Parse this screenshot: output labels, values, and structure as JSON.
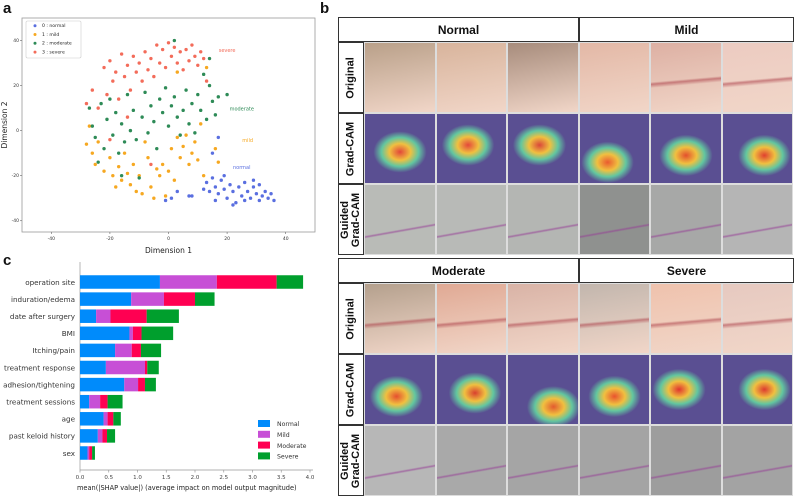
{
  "panel_letters": {
    "a": "a",
    "b": "b",
    "c": "c"
  },
  "panel_b": {
    "groups": [
      "Normal",
      "Mild",
      "Moderate",
      "Severe"
    ],
    "row_labels": {
      "original": "Original",
      "gradcam": "Grad-CAM",
      "guided_line1": "Guided",
      "guided_line2": "Grad-CAM"
    }
  },
  "chart_data": [
    {
      "type": "scatter",
      "title": "",
      "xlabel": "Dimension 1",
      "ylabel": "Dimension 2",
      "xlim": [
        -50,
        50
      ],
      "ylim": [
        -45,
        50
      ],
      "xticks": [
        -40,
        -20,
        0,
        20,
        40
      ],
      "yticks": [
        -40,
        -20,
        0,
        20,
        40
      ],
      "legend_position": "top-left",
      "series": [
        {
          "name": "0 : normal",
          "color": "#5a6fe0",
          "annotation": {
            "text": "normal",
            "x": 25,
            "y": -17
          },
          "points": [
            [
              13,
              -23
            ],
            [
              15,
              -21
            ],
            [
              16,
              -25
            ],
            [
              18,
              -22
            ],
            [
              17,
              -28
            ],
            [
              19,
              -26
            ],
            [
              20,
              -30
            ],
            [
              21,
              -24
            ],
            [
              22,
              -27
            ],
            [
              23,
              -32
            ],
            [
              24,
              -25
            ],
            [
              25,
              -29
            ],
            [
              26,
              -23
            ],
            [
              27,
              -27
            ],
            [
              28,
              -30
            ],
            [
              29,
              -25
            ],
            [
              30,
              -28
            ],
            [
              31,
              -24
            ],
            [
              32,
              -29
            ],
            [
              33,
              -27
            ],
            [
              34,
              -30
            ],
            [
              35,
              -28
            ],
            [
              36,
              -31
            ],
            [
              14,
              -27
            ],
            [
              16,
              -31
            ],
            [
              19,
              -20
            ],
            [
              22,
              -33
            ],
            [
              26,
              -31
            ],
            [
              29,
              -22
            ],
            [
              31,
              -31
            ],
            [
              12,
              -26
            ],
            [
              1,
              -30
            ],
            [
              3,
              -27
            ],
            [
              -1,
              -31
            ],
            [
              7,
              -29
            ],
            [
              8,
              -29
            ],
            [
              17,
              -3
            ],
            [
              15,
              -10
            ]
          ]
        },
        {
          "name": "1 : mild",
          "color": "#f6a821",
          "annotation": {
            "text": "mild",
            "x": 27,
            "y": -5
          },
          "points": [
            [
              -28,
              -6
            ],
            [
              -27,
              2
            ],
            [
              -26,
              -10
            ],
            [
              -25,
              -15
            ],
            [
              -24,
              -5
            ],
            [
              -22,
              -18
            ],
            [
              -20,
              -12
            ],
            [
              -19,
              -20
            ],
            [
              -18,
              -25
            ],
            [
              -17,
              -16
            ],
            [
              -16,
              -22
            ],
            [
              -15,
              -10
            ],
            [
              -14,
              -19
            ],
            [
              -13,
              -24
            ],
            [
              -12,
              -15
            ],
            [
              -11,
              -27
            ],
            [
              -10,
              -20
            ],
            [
              -9,
              -28
            ],
            [
              -8,
              -5
            ],
            [
              -7,
              -12
            ],
            [
              -6,
              -25
            ],
            [
              -4,
              -17
            ],
            [
              -3,
              -20
            ],
            [
              -2,
              -15
            ],
            [
              -1,
              -29
            ],
            [
              0,
              -18
            ],
            [
              1,
              -8
            ],
            [
              2,
              -22
            ],
            [
              3,
              -3
            ],
            [
              4,
              -12
            ],
            [
              5,
              -7
            ],
            [
              6,
              -2
            ],
            [
              7,
              -15
            ],
            [
              8,
              -10
            ],
            [
              9,
              -5
            ],
            [
              10,
              -13
            ],
            [
              11,
              3
            ],
            [
              13,
              28
            ],
            [
              16,
              -8
            ],
            [
              17,
              -14
            ],
            [
              -5,
              -30
            ],
            [
              3,
              26
            ],
            [
              12,
              -20
            ]
          ]
        },
        {
          "name": "2 : moderate",
          "color": "#2e8b57",
          "annotation": {
            "text": "moderate",
            "x": 25,
            "y": 9
          },
          "points": [
            [
              -27,
              10
            ],
            [
              -26,
              2
            ],
            [
              -25,
              -3
            ],
            [
              -24,
              -14
            ],
            [
              -23,
              12
            ],
            [
              -22,
              -8
            ],
            [
              -21,
              5
            ],
            [
              -20,
              14
            ],
            [
              -19,
              -2
            ],
            [
              -18,
              8
            ],
            [
              -17,
              -10
            ],
            [
              -16,
              3
            ],
            [
              -15,
              -5
            ],
            [
              -14,
              16
            ],
            [
              -13,
              0
            ],
            [
              -12,
              9
            ],
            [
              -11,
              -4
            ],
            [
              -10,
              -21
            ],
            [
              -9,
              6
            ],
            [
              -8,
              17
            ],
            [
              -7,
              -1
            ],
            [
              -6,
              11
            ],
            [
              -5,
              4
            ],
            [
              -4,
              -8
            ],
            [
              -3,
              14
            ],
            [
              -2,
              8
            ],
            [
              -1,
              19
            ],
            [
              0,
              2
            ],
            [
              1,
              11
            ],
            [
              2,
              15
            ],
            [
              3,
              6
            ],
            [
              4,
              -2
            ],
            [
              5,
              9
            ],
            [
              6,
              18
            ],
            [
              7,
              3
            ],
            [
              8,
              12
            ],
            [
              9,
              -1
            ],
            [
              10,
              16
            ],
            [
              11,
              9
            ],
            [
              12,
              25
            ],
            [
              13,
              5
            ],
            [
              14,
              20
            ],
            [
              15,
              13
            ],
            [
              16,
              7
            ],
            [
              17,
              15
            ],
            [
              20,
              16
            ],
            [
              2,
              40
            ],
            [
              14,
              32
            ],
            [
              -16,
              -20
            ]
          ]
        },
        {
          "name": "3 : severe",
          "color": "#f36c5a",
          "annotation": {
            "text": "severe",
            "x": 20,
            "y": 35
          },
          "points": [
            [
              -28,
              12
            ],
            [
              -26,
              18
            ],
            [
              -24,
              10
            ],
            [
              -22,
              28
            ],
            [
              -21,
              16
            ],
            [
              -20,
              31
            ],
            [
              -19,
              22
            ],
            [
              -18,
              26
            ],
            [
              -17,
              14
            ],
            [
              -16,
              34
            ],
            [
              -15,
              24
            ],
            [
              -14,
              29
            ],
            [
              -13,
              18
            ],
            [
              -12,
              33
            ],
            [
              -11,
              26
            ],
            [
              -10,
              30
            ],
            [
              -9,
              22
            ],
            [
              -8,
              35
            ],
            [
              -7,
              27
            ],
            [
              -6,
              32
            ],
            [
              -5,
              24
            ],
            [
              -4,
              38
            ],
            [
              -3,
              30
            ],
            [
              -2,
              36
            ],
            [
              -1,
              28
            ],
            [
              0,
              39
            ],
            [
              1,
              33
            ],
            [
              2,
              37
            ],
            [
              3,
              30
            ],
            [
              4,
              35
            ],
            [
              5,
              27
            ],
            [
              6,
              36
            ],
            [
              7,
              31
            ],
            [
              8,
              38
            ],
            [
              9,
              33
            ],
            [
              10,
              29
            ],
            [
              11,
              35
            ],
            [
              12,
              32
            ],
            [
              13,
              22
            ],
            [
              -20,
              -4
            ],
            [
              -6,
              -15
            ],
            [
              -14,
              6
            ]
          ]
        }
      ]
    },
    {
      "type": "bar",
      "orientation": "horizontal",
      "stacked": true,
      "xlabel": "mean(|SHAP value|) (average impact on model output magnitude)",
      "xlim": [
        0,
        4.0
      ],
      "xticks": [
        "0.0",
        "0.5",
        "1.0",
        "1.5",
        "2.0",
        "2.5",
        "3.0",
        "3.5",
        "4.0"
      ],
      "legend_position": "bottom-right",
      "categories": [
        "operation site",
        "induration/edema",
        "date after surgery",
        "BMI",
        "Itching/pain",
        "treatment response",
        "adhesion/tightening",
        "treatment sessions",
        "age",
        "past keloid history",
        "sex"
      ],
      "series": [
        {
          "name": "Normal",
          "color": "#008bfb",
          "values": [
            1.39,
            0.89,
            0.28,
            0.86,
            0.61,
            0.45,
            0.77,
            0.16,
            0.41,
            0.31,
            0.13
          ]
        },
        {
          "name": "Mild",
          "color": "#c74fd6",
          "values": [
            0.99,
            0.57,
            0.25,
            0.06,
            0.29,
            0.68,
            0.24,
            0.19,
            0.07,
            0.08,
            0.03
          ]
        },
        {
          "name": "Moderate",
          "color": "#ff0052",
          "values": [
            1.04,
            0.54,
            0.63,
            0.15,
            0.16,
            0.04,
            0.12,
            0.13,
            0.1,
            0.08,
            0.05
          ]
        },
        {
          "name": "Severe",
          "color": "#009f2d",
          "values": [
            0.46,
            0.34,
            0.56,
            0.55,
            0.35,
            0.2,
            0.19,
            0.26,
            0.13,
            0.14,
            0.05
          ]
        }
      ]
    }
  ]
}
